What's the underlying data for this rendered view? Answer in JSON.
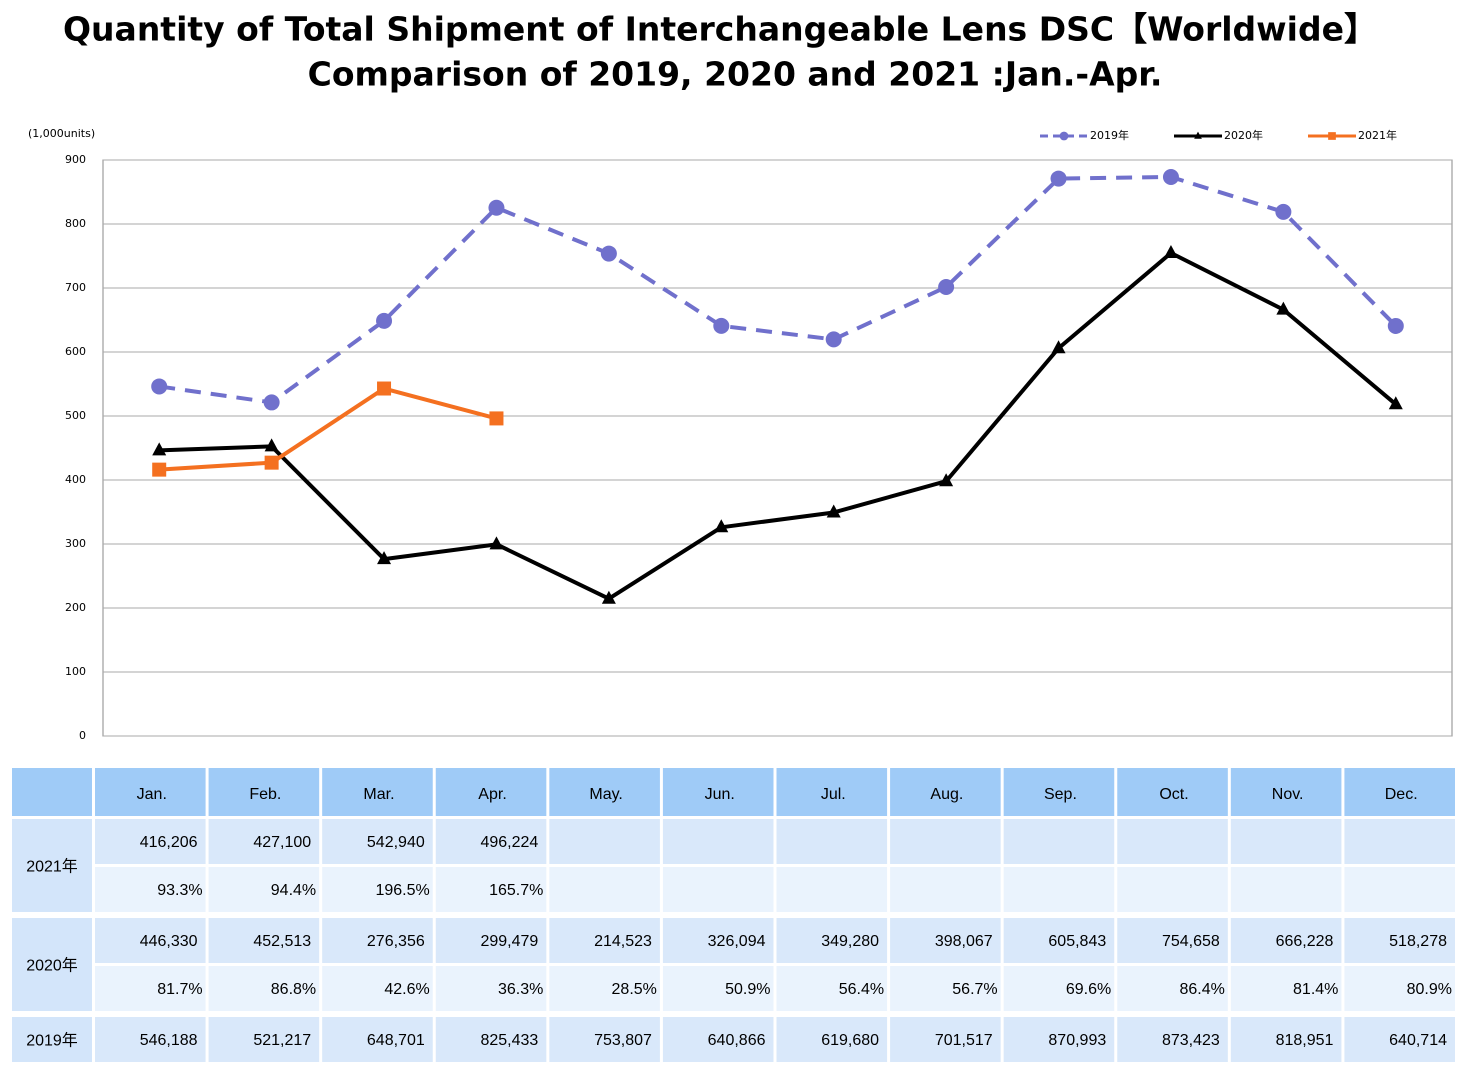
{
  "chart_data": {
    "type": "line",
    "title": "Quantity of Total Shipment of Interchangeable Lens DSC【Worldwide】",
    "subtitle": "Comparison of 2019, 2020 and 2021 :Jan.-Apr.",
    "y_label": "(1,000units)",
    "categories": [
      "Jan.",
      "Feb.",
      "Mar.",
      "Apr.",
      "May.",
      "Jun.",
      "Jul.",
      "Aug.",
      "Sep.",
      "Oct.",
      "Nov.",
      "Dec."
    ],
    "ylim": [
      0,
      900
    ],
    "yticks": [
      0,
      100,
      200,
      300,
      400,
      500,
      600,
      700,
      800,
      900
    ],
    "grid": true,
    "legend": "top-right",
    "series": [
      {
        "name": "2019年",
        "color": "#7070cc",
        "dash": true,
        "marker": "circle",
        "values": [
          546.188,
          521.217,
          648.701,
          825.433,
          753.807,
          640.866,
          619.68,
          701.517,
          870.993,
          873.423,
          818.951,
          640.714
        ],
        "value_labels": [
          "546,188",
          "521,217",
          "648,701",
          "825,433",
          "753,807",
          "640,866",
          "619,680",
          "701,517",
          "870,993",
          "873,423",
          "818,951",
          "640,714"
        ]
      },
      {
        "name": "2020年",
        "color": "#000000",
        "dash": false,
        "marker": "triangle",
        "values": [
          446.33,
          452.513,
          276.356,
          299.479,
          214.523,
          326.094,
          349.28,
          398.067,
          605.843,
          754.658,
          666.228,
          518.278
        ],
        "value_labels": [
          "446,330",
          "452,513",
          "276,356",
          "299,479",
          "214,523",
          "326,094",
          "349,280",
          "398,067",
          "605,843",
          "754,658",
          "666,228",
          "518,278"
        ],
        "ratio_labels": [
          "81.7%",
          "86.8%",
          "42.6%",
          "36.3%",
          "28.5%",
          "50.9%",
          "56.4%",
          "56.7%",
          "69.6%",
          "86.4%",
          "81.4%",
          "80.9%"
        ]
      },
      {
        "name": "2021年",
        "color": "#f47020",
        "dash": false,
        "marker": "square",
        "values": [
          416.206,
          427.1,
          542.94,
          496.224,
          null,
          null,
          null,
          null,
          null,
          null,
          null,
          null
        ],
        "value_labels": [
          "416,206",
          "427,100",
          "542,940",
          "496,224",
          null,
          null,
          null,
          null,
          null,
          null,
          null,
          null
        ],
        "ratio_labels": [
          "93.3%",
          "94.4%",
          "196.5%",
          "165.7%",
          null,
          null,
          null,
          null,
          null,
          null,
          null,
          null
        ]
      }
    ]
  }
}
